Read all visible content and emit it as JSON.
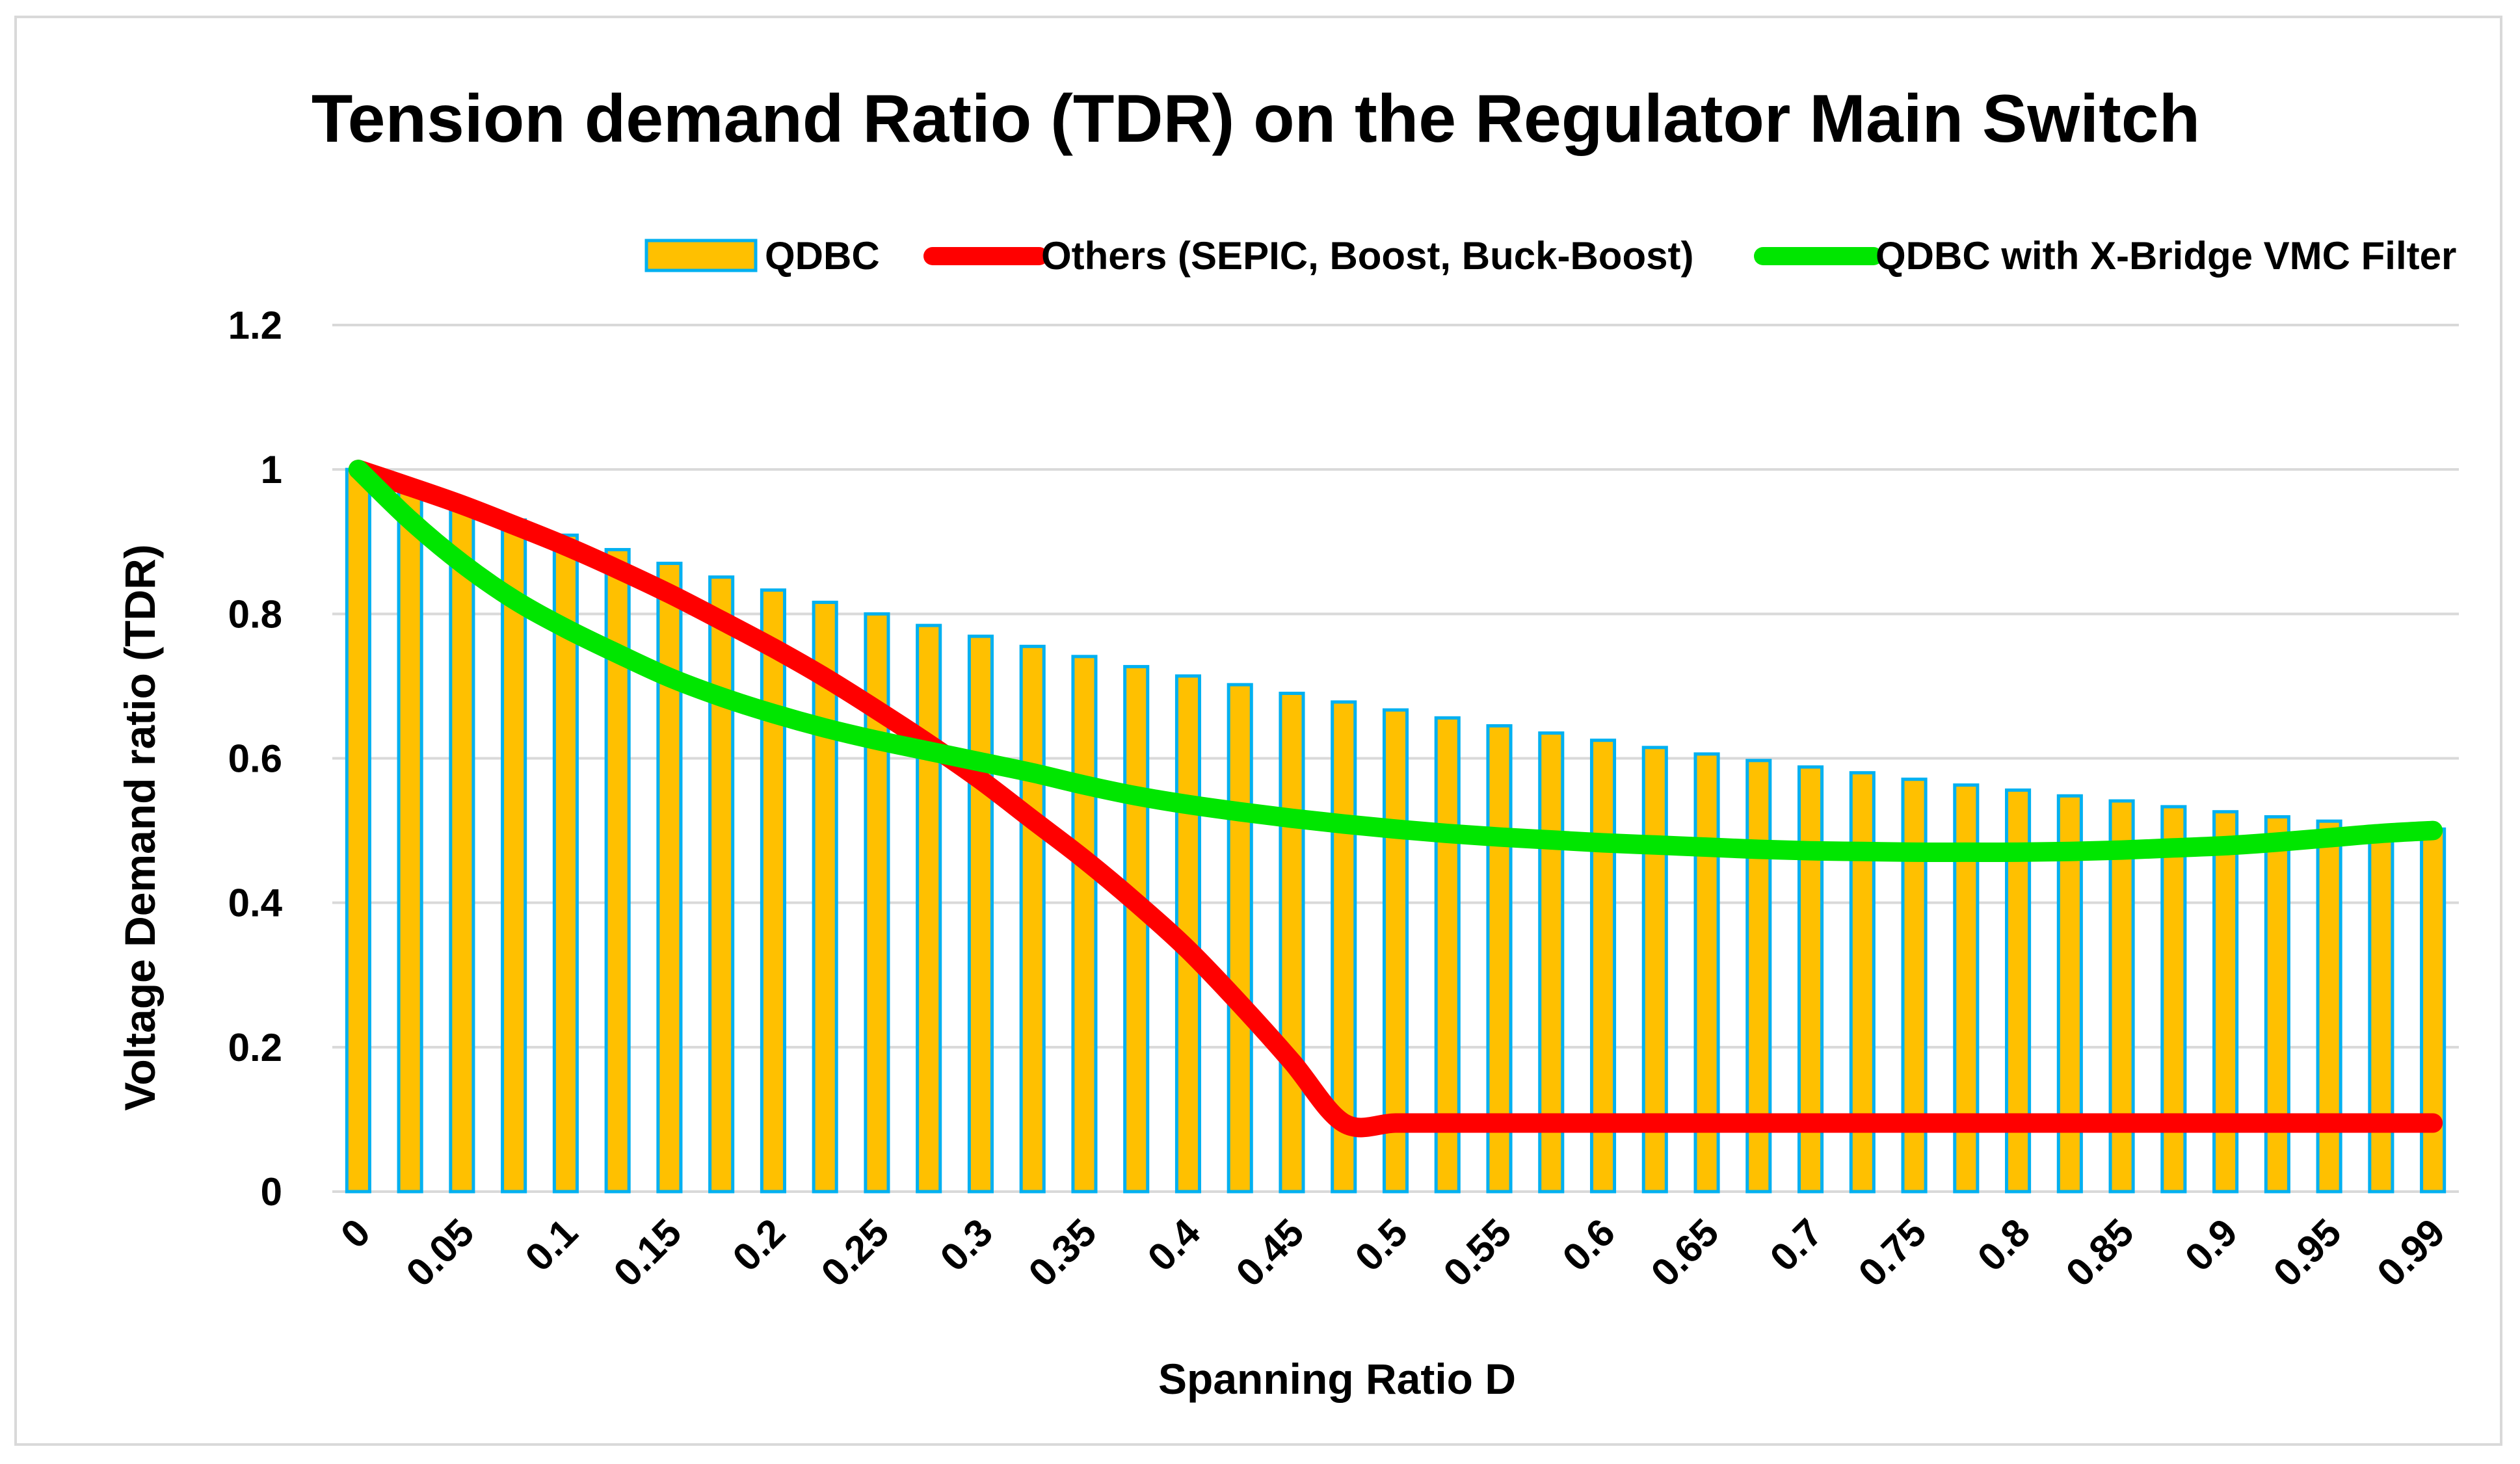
{
  "chart_data": {
    "type": "bar",
    "title": "Tension demand Ratio (TDR) on the Regulator Main Switch",
    "xlabel": "Spanning Ratio D",
    "ylabel": "Voltage Demand ratio (TDR)",
    "ylim": [
      0,
      1.2
    ],
    "yticks": [
      "0",
      "0.2",
      "0.4",
      "0.6",
      "0.8",
      "1",
      "1.2"
    ],
    "grid": true,
    "legend_position": "top-right",
    "categories": [
      "0",
      "0.025",
      "0.05",
      "0.075",
      "0.1",
      "0.125",
      "0.15",
      "0.175",
      "0.2",
      "0.225",
      "0.25",
      "0.275",
      "0.3",
      "0.325",
      "0.35",
      "0.375",
      "0.4",
      "0.425",
      "0.45",
      "0.475",
      "0.5",
      "0.525",
      "0.55",
      "0.575",
      "0.6",
      "0.625",
      "0.65",
      "0.675",
      "0.7",
      "0.725",
      "0.75",
      "0.775",
      "0.8",
      "0.825",
      "0.85",
      "0.875",
      "0.9",
      "0.925",
      "0.95",
      "0.975",
      "0.99"
    ],
    "tick_labels": [
      "0",
      "",
      "0.05",
      "",
      "0.1",
      "",
      "0.15",
      "",
      "0.2",
      "",
      "0.25",
      "",
      "0.3",
      "",
      "0.35",
      "",
      "0.4",
      "",
      "0.45",
      "",
      "0.5",
      "",
      "0.55",
      "",
      "0.6",
      "",
      "0.65",
      "",
      "0.7",
      "",
      "0.75",
      "",
      "0.8",
      "",
      "0.85",
      "",
      "0.9",
      "",
      "0.95",
      "",
      "0.99"
    ],
    "series": [
      {
        "name": "QDBC",
        "kind": "bar",
        "color": "#FFC000",
        "edge": "#00B0F0",
        "values": [
          1.0,
          0.976,
          0.952,
          0.93,
          0.909,
          0.889,
          0.87,
          0.851,
          0.833,
          0.816,
          0.8,
          0.784,
          0.769,
          0.755,
          0.741,
          0.727,
          0.714,
          0.702,
          0.69,
          0.678,
          0.667,
          0.656,
          0.645,
          0.635,
          0.625,
          0.615,
          0.606,
          0.597,
          0.588,
          0.58,
          0.571,
          0.563,
          0.556,
          0.548,
          0.541,
          0.533,
          0.526,
          0.519,
          0.513,
          0.506,
          0.502
        ]
      },
      {
        "name": "Others (SEPIC, Boost, Buck-Boost)",
        "kind": "line",
        "color": "#FF0000",
        "values": [
          1.0,
          0.976,
          0.951,
          0.923,
          0.894,
          0.862,
          0.828,
          0.791,
          0.753,
          0.712,
          0.667,
          0.62,
          0.57,
          0.515,
          0.46,
          0.4,
          0.335,
          0.26,
          0.18,
          0.095,
          0.095,
          0.095,
          0.095,
          0.095,
          0.095,
          0.095,
          0.095,
          0.095,
          0.095,
          0.095,
          0.095,
          0.095,
          0.095,
          0.095,
          0.095,
          0.095,
          0.095,
          0.095,
          0.095,
          0.095,
          0.095
        ]
      },
      {
        "name": "QDBC with X-Bridge VMC Filter",
        "kind": "line",
        "color": "#00E600",
        "values": [
          1.0,
          0.93,
          0.87,
          0.82,
          0.78,
          0.745,
          0.712,
          0.685,
          0.662,
          0.642,
          0.625,
          0.61,
          0.595,
          0.58,
          0.563,
          0.548,
          0.536,
          0.526,
          0.517,
          0.509,
          0.502,
          0.496,
          0.491,
          0.487,
          0.483,
          0.48,
          0.477,
          0.474,
          0.472,
          0.471,
          0.47,
          0.47,
          0.47,
          0.471,
          0.473,
          0.476,
          0.479,
          0.484,
          0.49,
          0.496,
          0.5
        ]
      }
    ]
  }
}
